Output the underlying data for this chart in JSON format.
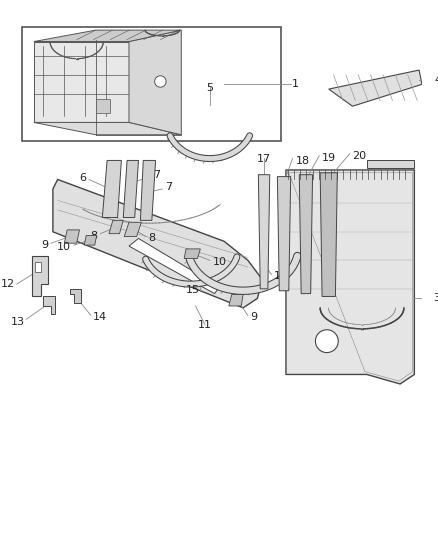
{
  "bg_color": "#ffffff",
  "line_color": "#444444",
  "label_color": "#222222",
  "thin_lc": "#666666",
  "leader_lc": "#888888"
}
